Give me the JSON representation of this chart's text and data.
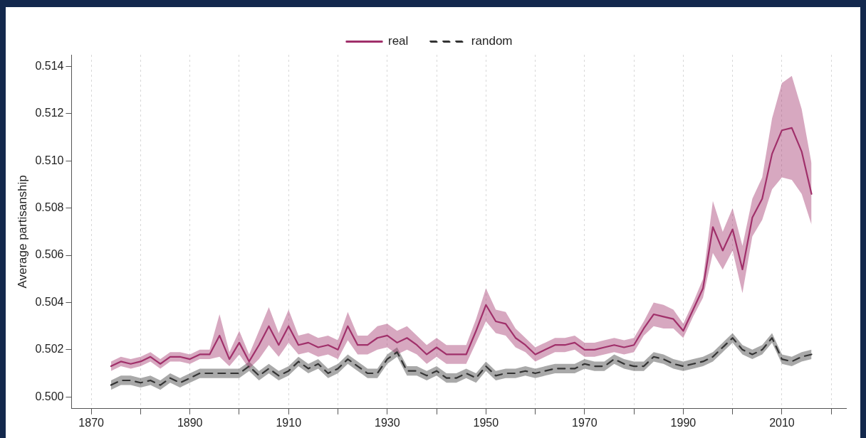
{
  "chart_data": {
    "type": "line",
    "ylabel": "Average partisanship",
    "x": [
      1874,
      1876,
      1878,
      1880,
      1882,
      1884,
      1886,
      1888,
      1890,
      1892,
      1894,
      1896,
      1898,
      1900,
      1902,
      1904,
      1906,
      1908,
      1910,
      1912,
      1914,
      1916,
      1918,
      1920,
      1922,
      1924,
      1926,
      1928,
      1930,
      1932,
      1934,
      1936,
      1938,
      1940,
      1942,
      1944,
      1946,
      1948,
      1950,
      1952,
      1954,
      1956,
      1958,
      1960,
      1962,
      1964,
      1966,
      1968,
      1970,
      1972,
      1974,
      1976,
      1978,
      1980,
      1982,
      1984,
      1986,
      1988,
      1990,
      1992,
      1994,
      1996,
      1998,
      2000,
      2002,
      2004,
      2006,
      2008,
      2010,
      2012,
      2014,
      2016
    ],
    "series": [
      {
        "name": "real",
        "color": "#a0306a",
        "line_style": "solid",
        "values": [
          0.5013,
          0.5015,
          0.5014,
          0.5015,
          0.5017,
          0.5014,
          0.5017,
          0.5017,
          0.5016,
          0.5018,
          0.5018,
          0.5026,
          0.5016,
          0.5023,
          0.5015,
          0.5022,
          0.503,
          0.5022,
          0.503,
          0.5022,
          0.5023,
          0.5021,
          0.5022,
          0.502,
          0.503,
          0.5022,
          0.5022,
          0.5025,
          0.5026,
          0.5023,
          0.5025,
          0.5022,
          0.5018,
          0.5021,
          0.5018,
          0.5018,
          0.5018,
          0.5028,
          0.5039,
          0.5032,
          0.5031,
          0.5025,
          0.5022,
          0.5018,
          0.502,
          0.5022,
          0.5022,
          0.5023,
          0.502,
          0.502,
          0.5021,
          0.5022,
          0.5021,
          0.5022,
          0.5029,
          0.5035,
          0.5034,
          0.5033,
          0.5028,
          0.5037,
          0.5046,
          0.5072,
          0.5062,
          0.5071,
          0.5054,
          0.5076,
          0.5084,
          0.5103,
          0.5113,
          0.5114,
          0.5104,
          0.5086
        ],
        "lower": [
          0.5011,
          0.5013,
          0.5012,
          0.5013,
          0.5015,
          0.5012,
          0.5015,
          0.5015,
          0.5014,
          0.5016,
          0.5016,
          0.5017,
          0.5013,
          0.5018,
          0.5012,
          0.5016,
          0.5022,
          0.5017,
          0.5023,
          0.5018,
          0.5019,
          0.5017,
          0.5018,
          0.5016,
          0.5024,
          0.5018,
          0.5018,
          0.502,
          0.5021,
          0.5018,
          0.502,
          0.5018,
          0.5014,
          0.5017,
          0.5014,
          0.5014,
          0.5014,
          0.5023,
          0.5032,
          0.5027,
          0.5026,
          0.5021,
          0.5019,
          0.5015,
          0.5017,
          0.5019,
          0.5019,
          0.502,
          0.5017,
          0.5017,
          0.5018,
          0.5019,
          0.5018,
          0.5019,
          0.5026,
          0.503,
          0.5029,
          0.5029,
          0.5025,
          0.5034,
          0.5042,
          0.5061,
          0.5054,
          0.5062,
          0.5044,
          0.5068,
          0.5075,
          0.5088,
          0.5093,
          0.5092,
          0.5086,
          0.5073
        ],
        "upper": [
          0.5015,
          0.5017,
          0.5016,
          0.5017,
          0.5019,
          0.5016,
          0.5019,
          0.5019,
          0.5018,
          0.502,
          0.502,
          0.5035,
          0.5019,
          0.5028,
          0.5018,
          0.5028,
          0.5038,
          0.5027,
          0.5037,
          0.5026,
          0.5027,
          0.5025,
          0.5026,
          0.5024,
          0.5036,
          0.5026,
          0.5026,
          0.503,
          0.5031,
          0.5028,
          0.503,
          0.5026,
          0.5022,
          0.5025,
          0.5022,
          0.5022,
          0.5022,
          0.5033,
          0.5046,
          0.5037,
          0.5036,
          0.5029,
          0.5025,
          0.5021,
          0.5023,
          0.5025,
          0.5025,
          0.5026,
          0.5023,
          0.5023,
          0.5024,
          0.5025,
          0.5024,
          0.5025,
          0.5032,
          0.504,
          0.5039,
          0.5037,
          0.5031,
          0.504,
          0.505,
          0.5083,
          0.507,
          0.508,
          0.5064,
          0.5084,
          0.5093,
          0.5118,
          0.5133,
          0.5136,
          0.5122,
          0.5099
        ]
      },
      {
        "name": "random",
        "color": "#333333",
        "line_style": "dashed",
        "values": [
          0.5005,
          0.5007,
          0.5007,
          0.5006,
          0.5007,
          0.5005,
          0.5008,
          0.5006,
          0.5008,
          0.501,
          0.501,
          0.501,
          0.501,
          0.501,
          0.5013,
          0.5009,
          0.5012,
          0.5009,
          0.5011,
          0.5015,
          0.5012,
          0.5014,
          0.501,
          0.5012,
          0.5016,
          0.5013,
          0.501,
          0.501,
          0.5016,
          0.5019,
          0.5011,
          0.5011,
          0.5009,
          0.5011,
          0.5008,
          0.5008,
          0.501,
          0.5008,
          0.5013,
          0.5009,
          0.501,
          0.501,
          0.5011,
          0.501,
          0.5011,
          0.5012,
          0.5012,
          0.5012,
          0.5014,
          0.5013,
          0.5013,
          0.5016,
          0.5014,
          0.5013,
          0.5013,
          0.5017,
          0.5016,
          0.5014,
          0.5013,
          0.5014,
          0.5015,
          0.5017,
          0.5021,
          0.5025,
          0.502,
          0.5018,
          0.502,
          0.5025,
          0.5016,
          0.5015,
          0.5017,
          0.5018
        ],
        "lower": [
          0.5003,
          0.5005,
          0.5005,
          0.5004,
          0.5005,
          0.5003,
          0.5006,
          0.5004,
          0.5006,
          0.5008,
          0.5008,
          0.5008,
          0.5008,
          0.5008,
          0.5011,
          0.5007,
          0.501,
          0.5007,
          0.5009,
          0.5013,
          0.501,
          0.5012,
          0.5008,
          0.501,
          0.5014,
          0.5011,
          0.5008,
          0.5008,
          0.5014,
          0.5017,
          0.5009,
          0.5009,
          0.5007,
          0.5009,
          0.5006,
          0.5006,
          0.5008,
          0.5006,
          0.5011,
          0.5007,
          0.5008,
          0.5008,
          0.5009,
          0.5008,
          0.5009,
          0.501,
          0.501,
          0.501,
          0.5012,
          0.5011,
          0.5011,
          0.5014,
          0.5012,
          0.5011,
          0.5011,
          0.5015,
          0.5014,
          0.5012,
          0.5011,
          0.5012,
          0.5013,
          0.5015,
          0.5019,
          0.5023,
          0.5018,
          0.5016,
          0.5018,
          0.5023,
          0.5014,
          0.5013,
          0.5015,
          0.5016
        ],
        "upper": [
          0.5007,
          0.5009,
          0.5009,
          0.5008,
          0.5009,
          0.5007,
          0.501,
          0.5008,
          0.501,
          0.5012,
          0.5012,
          0.5012,
          0.5012,
          0.5012,
          0.5015,
          0.5011,
          0.5014,
          0.5011,
          0.5013,
          0.5017,
          0.5014,
          0.5016,
          0.5012,
          0.5014,
          0.5018,
          0.5015,
          0.5012,
          0.5012,
          0.5018,
          0.5021,
          0.5013,
          0.5013,
          0.5011,
          0.5013,
          0.501,
          0.501,
          0.5012,
          0.501,
          0.5015,
          0.5011,
          0.5012,
          0.5012,
          0.5013,
          0.5012,
          0.5013,
          0.5014,
          0.5014,
          0.5014,
          0.5016,
          0.5015,
          0.5015,
          0.5018,
          0.5016,
          0.5015,
          0.5015,
          0.5019,
          0.5018,
          0.5016,
          0.5015,
          0.5016,
          0.5017,
          0.5019,
          0.5023,
          0.5027,
          0.5022,
          0.502,
          0.5022,
          0.5027,
          0.5018,
          0.5017,
          0.5019,
          0.502
        ]
      }
    ],
    "xlim": [
      1866,
      2023
    ],
    "xticks": [
      1870,
      {
        "value": 1880,
        "label": null
      },
      1890,
      {
        "value": 1900,
        "label": null
      },
      1910,
      {
        "value": 1920,
        "label": null
      },
      1930,
      {
        "value": 1940,
        "label": null
      },
      1950,
      {
        "value": 1960,
        "label": null
      },
      1970,
      {
        "value": 1980,
        "label": null
      },
      1990,
      {
        "value": 2000,
        "label": null
      },
      2010,
      {
        "value": 2020,
        "label": null
      }
    ],
    "ylim": [
      0.4995,
      0.5145
    ],
    "yticks": [
      {
        "value": 0.5,
        "label": "0.500"
      },
      {
        "value": 0.502,
        "label": "0.502"
      },
      {
        "value": 0.504,
        "label": "0.504"
      },
      {
        "value": 0.506,
        "label": "0.506"
      },
      {
        "value": 0.508,
        "label": "0.508"
      },
      {
        "value": 0.51,
        "label": "0.510"
      },
      {
        "value": 0.512,
        "label": "0.512"
      },
      {
        "value": 0.514,
        "label": "0.514"
      }
    ],
    "grid": "x",
    "legend": "top",
    "marker": "none"
  }
}
